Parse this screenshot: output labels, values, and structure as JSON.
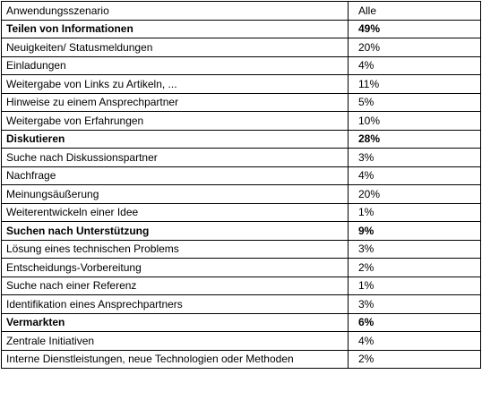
{
  "table": {
    "header": {
      "scenario": "Anwendungsszenario",
      "value": "Alle"
    },
    "rows": [
      {
        "label": "Teilen von Informationen",
        "value": "49%",
        "category": true
      },
      {
        "label": "Neuigkeiten/ Statusmeldungen",
        "value": "20%",
        "category": false
      },
      {
        "label": "Einladungen",
        "value": "4%",
        "category": false
      },
      {
        "label": "Weitergabe von Links zu Artikeln, ...",
        "value": "11%",
        "category": false
      },
      {
        "label": "Hinweise zu einem Ansprechpartner",
        "value": "5%",
        "category": false
      },
      {
        "label": "Weitergabe von Erfahrungen",
        "value": "10%",
        "category": false
      },
      {
        "label": "Diskutieren",
        "value": "28%",
        "category": true
      },
      {
        "label": "Suche nach Diskussionspartner",
        "value": "3%",
        "category": false
      },
      {
        "label": "Nachfrage",
        "value": "4%",
        "category": false
      },
      {
        "label": "Meinungsäußerung",
        "value": "20%",
        "category": false
      },
      {
        "label": "Weiterentwickeln einer Idee",
        "value": "1%",
        "category": false
      },
      {
        "label": "Suchen nach Unterstützung",
        "value": "9%",
        "category": true
      },
      {
        "label": "Lösung eines technischen Problems",
        "value": "3%",
        "category": false
      },
      {
        "label": "Entscheidungs-Vorbereitung",
        "value": "2%",
        "category": false
      },
      {
        "label": "Suche nach einer Referenz",
        "value": "1%",
        "category": false
      },
      {
        "label": "Identifikation eines Ansprechpartners",
        "value": "3%",
        "category": false
      },
      {
        "label": "Vermarkten",
        "value": "6%",
        "category": true
      },
      {
        "label": "Zentrale Initiativen",
        "value": "4%",
        "category": false
      },
      {
        "label": "Interne Dienstleistungen, neue Technologien oder Methoden",
        "value": "2%",
        "category": false
      }
    ]
  }
}
